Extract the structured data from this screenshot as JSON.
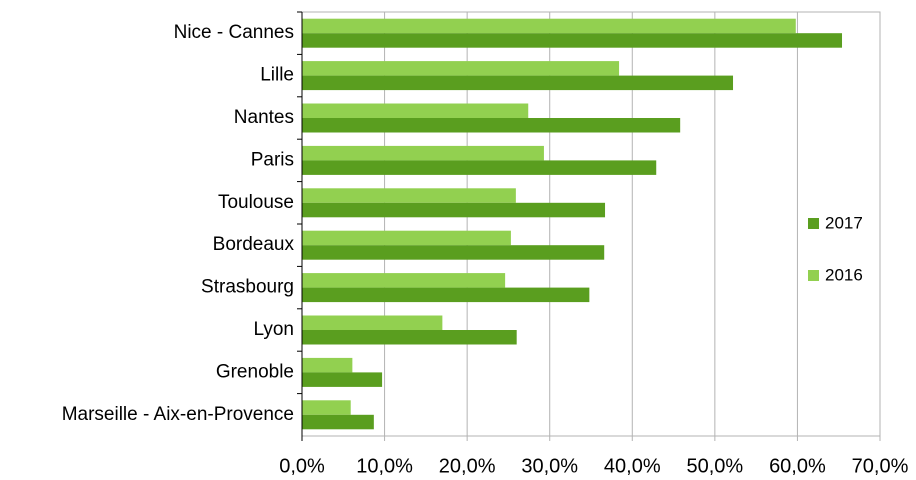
{
  "chart_data": {
    "type": "bar",
    "orientation": "horizontal",
    "categories": [
      "Nice - Cannes",
      "Lille",
      "Nantes",
      "Paris",
      "Toulouse",
      "Bordeaux",
      "Strasbourg",
      "Lyon",
      "Grenoble",
      "Marseille - Aix-en-Provence"
    ],
    "series": [
      {
        "name": "2017",
        "color": "#5a9e1f",
        "values": [
          65.4,
          52.2,
          45.8,
          42.9,
          36.7,
          36.6,
          34.8,
          26.0,
          9.7,
          8.7
        ]
      },
      {
        "name": "2016",
        "color": "#92d050",
        "values": [
          59.8,
          38.4,
          27.4,
          29.3,
          25.9,
          25.3,
          24.6,
          17.0,
          6.1,
          5.9
        ]
      }
    ],
    "xlim": [
      0,
      70
    ],
    "xticks": [
      {
        "value": 0,
        "label": "0,0%"
      },
      {
        "value": 10,
        "label": "10,0%"
      },
      {
        "value": 20,
        "label": "20,0%"
      },
      {
        "value": 30,
        "label": "30,0%"
      },
      {
        "value": 40,
        "label": "40,0%"
      },
      {
        "value": 50,
        "label": "50,0%"
      },
      {
        "value": 60,
        "label": "60,0%"
      },
      {
        "value": 70,
        "label": "70,0%"
      }
    ],
    "grid": true,
    "legend": "right"
  }
}
